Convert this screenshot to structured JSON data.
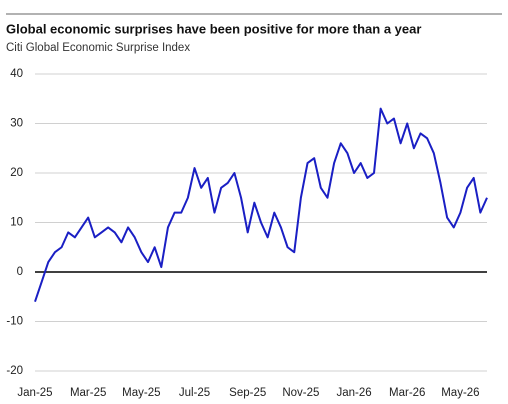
{
  "chart_data": {
    "type": "line",
    "title": "Global economic surprises have been positive for more than a year",
    "subtitle": "Citi Global Economic Surprise Index",
    "categories": [
      "Jan-25",
      null,
      null,
      null,
      null,
      null,
      null,
      null,
      "Mar-25",
      null,
      null,
      null,
      null,
      null,
      null,
      null,
      "May-25",
      null,
      null,
      null,
      null,
      null,
      null,
      null,
      "Jul-25",
      null,
      null,
      null,
      null,
      null,
      null,
      null,
      "Sep-25",
      null,
      null,
      null,
      null,
      null,
      null,
      null,
      "Nov-25",
      null,
      null,
      null,
      null,
      null,
      null,
      null,
      "Jan-26",
      null,
      null,
      null,
      null,
      null,
      null,
      null,
      "Mar-26",
      null,
      null,
      null,
      null,
      null,
      null,
      null,
      "May-26",
      null,
      null,
      null,
      null
    ],
    "series": [
      {
        "name": "Citi Global Economic Surprise Index",
        "color": "#1a1fc4",
        "values": [
          -6,
          -2,
          2,
          4,
          5,
          8,
          7,
          9,
          11,
          7,
          8,
          9,
          8,
          6,
          9,
          7,
          4,
          2,
          5,
          1,
          9,
          12,
          12,
          15,
          21,
          17,
          19,
          12,
          17,
          18,
          20,
          15,
          8,
          14,
          10,
          7,
          12,
          9,
          5,
          4,
          15,
          22,
          23,
          17,
          15,
          22,
          26,
          24,
          20,
          22,
          19,
          20,
          33,
          30,
          31,
          26,
          30,
          25,
          28,
          27,
          24,
          18,
          11,
          9,
          12,
          17,
          19,
          12,
          15
        ]
      }
    ],
    "ylim": [
      -20,
      40
    ],
    "yticks": [
      -20,
      -10,
      0,
      10,
      20,
      30,
      40
    ],
    "grid": true
  }
}
